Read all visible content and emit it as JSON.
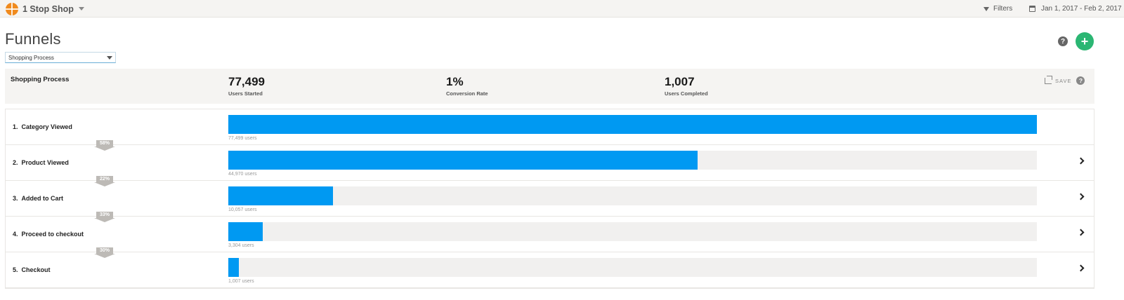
{
  "topbar": {
    "brand_name": "1 Stop Shop",
    "brand_icon": "basketball-logo-icon",
    "filters_label": "Filters",
    "date_range": "Jan 1, 2017 - Feb 2, 2017"
  },
  "header": {
    "title": "Funnels",
    "funnel_select_value": "Shopping Process",
    "help_icon": "?",
    "add_icon": "+"
  },
  "summary": {
    "funnel_name": "Shopping Process",
    "stats": [
      {
        "value": "77,499",
        "label": "Users Started"
      },
      {
        "value": "1%",
        "label": "Conversion Rate"
      },
      {
        "value": "1,007",
        "label": "Users Completed"
      }
    ],
    "save_label": "SAVE",
    "help_icon": "?"
  },
  "colors": {
    "accent": "#0099f2",
    "add_button": "#2bb673",
    "brand": "#f08a1d"
  },
  "steps": [
    {
      "number": "1.",
      "name": "Category Viewed",
      "users_label": "77,499 users",
      "fraction": 1.0,
      "has_chevron": false
    },
    {
      "number": "2.",
      "name": "Product Viewed",
      "users_label": "44,970 users",
      "fraction": 0.5803,
      "has_chevron": true
    },
    {
      "number": "3.",
      "name": "Added to Cart",
      "users_label": "10,057 users",
      "fraction": 0.1298,
      "has_chevron": true
    },
    {
      "number": "4.",
      "name": "Proceed to checkout",
      "users_label": "3,304 users",
      "fraction": 0.0426,
      "has_chevron": true
    },
    {
      "number": "5.",
      "name": "Checkout",
      "users_label": "1,007 users",
      "fraction": 0.013,
      "has_chevron": true
    }
  ],
  "conversions": [
    "58%",
    "22%",
    "33%",
    "30%"
  ]
}
